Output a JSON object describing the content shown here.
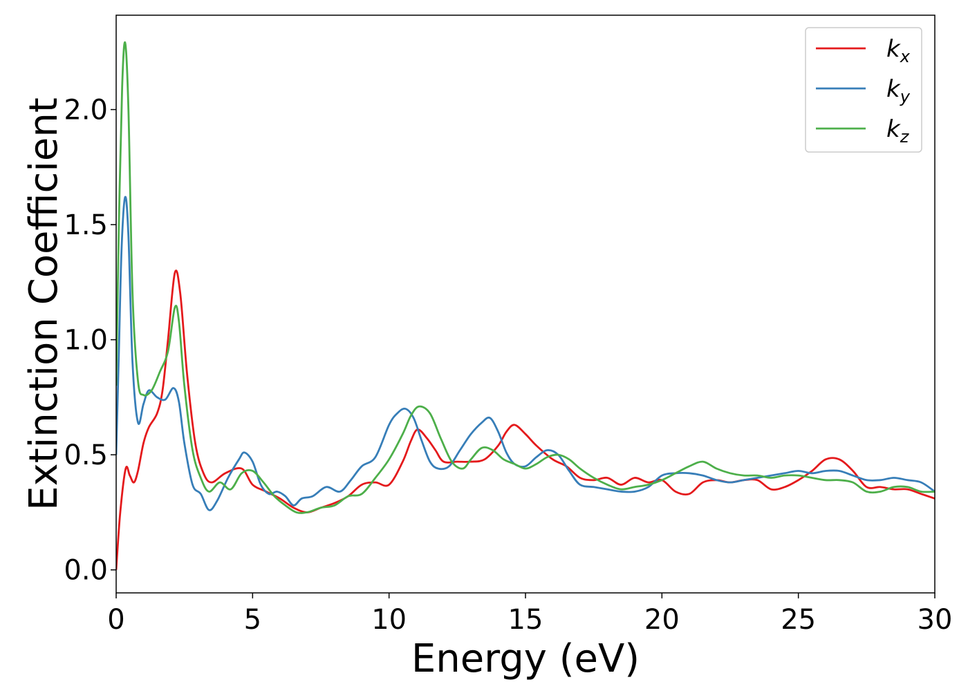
{
  "chart_data": {
    "type": "line",
    "title": "",
    "xlabel": "Energy (eV)",
    "ylabel": "Extinction Coefficient",
    "xlim": [
      0,
      30
    ],
    "ylim": [
      -0.1,
      2.41
    ],
    "xticks": [
      0,
      5,
      10,
      15,
      20,
      25,
      30
    ],
    "xtick_labels": [
      "0",
      "5",
      "10",
      "15",
      "20",
      "25",
      "30"
    ],
    "yticks": [
      0.0,
      0.5,
      1.0,
      1.5,
      2.0
    ],
    "ytick_labels": [
      "0.0",
      "0.5",
      "1.0",
      "1.5",
      "2.0"
    ],
    "grid": false,
    "legend_position": "top-right",
    "series": [
      {
        "name": "k",
        "subscript": "x",
        "color": "#e41a1c",
        "points": [
          [
            0,
            0.0
          ],
          [
            0.15,
            0.25
          ],
          [
            0.35,
            0.44
          ],
          [
            0.5,
            0.41
          ],
          [
            0.65,
            0.38
          ],
          [
            0.8,
            0.43
          ],
          [
            1.0,
            0.55
          ],
          [
            1.2,
            0.62
          ],
          [
            1.5,
            0.68
          ],
          [
            1.7,
            0.78
          ],
          [
            1.9,
            1.0
          ],
          [
            2.15,
            1.29
          ],
          [
            2.35,
            1.2
          ],
          [
            2.6,
            0.85
          ],
          [
            2.9,
            0.55
          ],
          [
            3.2,
            0.42
          ],
          [
            3.5,
            0.38
          ],
          [
            4.0,
            0.42
          ],
          [
            4.6,
            0.44
          ],
          [
            5.0,
            0.37
          ],
          [
            5.5,
            0.34
          ],
          [
            6.0,
            0.31
          ],
          [
            6.5,
            0.27
          ],
          [
            7.0,
            0.25
          ],
          [
            7.5,
            0.27
          ],
          [
            8.0,
            0.29
          ],
          [
            8.5,
            0.32
          ],
          [
            9.0,
            0.37
          ],
          [
            9.5,
            0.38
          ],
          [
            10.0,
            0.37
          ],
          [
            10.5,
            0.47
          ],
          [
            10.8,
            0.56
          ],
          [
            11.05,
            0.61
          ],
          [
            11.4,
            0.57
          ],
          [
            11.7,
            0.52
          ],
          [
            12.0,
            0.47
          ],
          [
            12.5,
            0.47
          ],
          [
            13.0,
            0.47
          ],
          [
            13.5,
            0.48
          ],
          [
            14.0,
            0.54
          ],
          [
            14.3,
            0.6
          ],
          [
            14.6,
            0.63
          ],
          [
            15.0,
            0.59
          ],
          [
            15.4,
            0.54
          ],
          [
            16.0,
            0.48
          ],
          [
            16.5,
            0.45
          ],
          [
            17.0,
            0.4
          ],
          [
            17.5,
            0.39
          ],
          [
            18.0,
            0.4
          ],
          [
            18.5,
            0.37
          ],
          [
            19.0,
            0.4
          ],
          [
            19.5,
            0.38
          ],
          [
            20.0,
            0.39
          ],
          [
            20.5,
            0.34
          ],
          [
            21.0,
            0.33
          ],
          [
            21.5,
            0.38
          ],
          [
            22.0,
            0.39
          ],
          [
            22.5,
            0.38
          ],
          [
            23.0,
            0.39
          ],
          [
            23.5,
            0.39
          ],
          [
            24.0,
            0.35
          ],
          [
            24.5,
            0.36
          ],
          [
            25.0,
            0.39
          ],
          [
            25.5,
            0.43
          ],
          [
            26.0,
            0.48
          ],
          [
            26.5,
            0.48
          ],
          [
            27.0,
            0.43
          ],
          [
            27.5,
            0.36
          ],
          [
            28.0,
            0.36
          ],
          [
            28.5,
            0.35
          ],
          [
            29.0,
            0.35
          ],
          [
            29.5,
            0.33
          ],
          [
            30.0,
            0.31
          ]
        ]
      },
      {
        "name": "k",
        "subscript": "y",
        "color": "#377eb8",
        "points": [
          [
            0,
            0.5
          ],
          [
            0.1,
            0.95
          ],
          [
            0.2,
            1.4
          ],
          [
            0.33,
            1.62
          ],
          [
            0.45,
            1.45
          ],
          [
            0.6,
            0.9
          ],
          [
            0.8,
            0.64
          ],
          [
            1.0,
            0.72
          ],
          [
            1.2,
            0.78
          ],
          [
            1.5,
            0.75
          ],
          [
            1.8,
            0.74
          ],
          [
            2.1,
            0.79
          ],
          [
            2.3,
            0.73
          ],
          [
            2.5,
            0.55
          ],
          [
            2.8,
            0.37
          ],
          [
            3.1,
            0.33
          ],
          [
            3.4,
            0.26
          ],
          [
            3.7,
            0.3
          ],
          [
            4.1,
            0.4
          ],
          [
            4.5,
            0.48
          ],
          [
            4.7,
            0.51
          ],
          [
            5.0,
            0.47
          ],
          [
            5.3,
            0.37
          ],
          [
            5.6,
            0.33
          ],
          [
            5.9,
            0.34
          ],
          [
            6.2,
            0.32
          ],
          [
            6.5,
            0.28
          ],
          [
            6.8,
            0.31
          ],
          [
            7.2,
            0.32
          ],
          [
            7.7,
            0.36
          ],
          [
            8.2,
            0.34
          ],
          [
            8.6,
            0.39
          ],
          [
            9.0,
            0.45
          ],
          [
            9.5,
            0.49
          ],
          [
            10.0,
            0.63
          ],
          [
            10.3,
            0.68
          ],
          [
            10.6,
            0.7
          ],
          [
            10.9,
            0.66
          ],
          [
            11.2,
            0.56
          ],
          [
            11.5,
            0.47
          ],
          [
            11.8,
            0.44
          ],
          [
            12.2,
            0.45
          ],
          [
            12.6,
            0.52
          ],
          [
            13.0,
            0.59
          ],
          [
            13.4,
            0.64
          ],
          [
            13.7,
            0.66
          ],
          [
            14.0,
            0.6
          ],
          [
            14.3,
            0.51
          ],
          [
            14.6,
            0.46
          ],
          [
            15.0,
            0.45
          ],
          [
            15.4,
            0.49
          ],
          [
            15.8,
            0.52
          ],
          [
            16.2,
            0.5
          ],
          [
            16.6,
            0.43
          ],
          [
            17.0,
            0.37
          ],
          [
            17.5,
            0.36
          ],
          [
            18.0,
            0.35
          ],
          [
            18.5,
            0.34
          ],
          [
            19.0,
            0.34
          ],
          [
            19.5,
            0.36
          ],
          [
            20.0,
            0.41
          ],
          [
            20.5,
            0.42
          ],
          [
            21.0,
            0.42
          ],
          [
            21.5,
            0.41
          ],
          [
            22.0,
            0.39
          ],
          [
            22.5,
            0.38
          ],
          [
            23.0,
            0.39
          ],
          [
            23.5,
            0.4
          ],
          [
            24.0,
            0.41
          ],
          [
            24.5,
            0.42
          ],
          [
            25.0,
            0.43
          ],
          [
            25.5,
            0.42
          ],
          [
            26.0,
            0.43
          ],
          [
            26.5,
            0.43
          ],
          [
            27.0,
            0.41
          ],
          [
            27.5,
            0.39
          ],
          [
            28.0,
            0.39
          ],
          [
            28.5,
            0.4
          ],
          [
            29.0,
            0.39
          ],
          [
            29.5,
            0.38
          ],
          [
            30.0,
            0.34
          ]
        ]
      },
      {
        "name": "k",
        "subscript": "z",
        "color": "#4daf4a",
        "points": [
          [
            0,
            0.8
          ],
          [
            0.1,
            1.5
          ],
          [
            0.22,
            2.1
          ],
          [
            0.33,
            2.29
          ],
          [
            0.45,
            2.0
          ],
          [
            0.6,
            1.2
          ],
          [
            0.8,
            0.82
          ],
          [
            1.0,
            0.76
          ],
          [
            1.3,
            0.78
          ],
          [
            1.6,
            0.86
          ],
          [
            1.9,
            0.95
          ],
          [
            2.15,
            1.14
          ],
          [
            2.3,
            1.08
          ],
          [
            2.5,
            0.8
          ],
          [
            2.8,
            0.52
          ],
          [
            3.1,
            0.4
          ],
          [
            3.4,
            0.34
          ],
          [
            3.8,
            0.38
          ],
          [
            4.2,
            0.35
          ],
          [
            4.6,
            0.42
          ],
          [
            5.0,
            0.43
          ],
          [
            5.4,
            0.38
          ],
          [
            5.8,
            0.32
          ],
          [
            6.2,
            0.28
          ],
          [
            6.6,
            0.25
          ],
          [
            7.0,
            0.25
          ],
          [
            7.5,
            0.27
          ],
          [
            8.0,
            0.28
          ],
          [
            8.5,
            0.32
          ],
          [
            9.0,
            0.33
          ],
          [
            9.5,
            0.4
          ],
          [
            10.0,
            0.48
          ],
          [
            10.5,
            0.59
          ],
          [
            10.8,
            0.67
          ],
          [
            11.1,
            0.71
          ],
          [
            11.5,
            0.68
          ],
          [
            11.9,
            0.57
          ],
          [
            12.3,
            0.47
          ],
          [
            12.7,
            0.44
          ],
          [
            13.0,
            0.48
          ],
          [
            13.4,
            0.53
          ],
          [
            13.8,
            0.52
          ],
          [
            14.2,
            0.48
          ],
          [
            14.6,
            0.46
          ],
          [
            15.0,
            0.44
          ],
          [
            15.4,
            0.46
          ],
          [
            15.8,
            0.49
          ],
          [
            16.2,
            0.5
          ],
          [
            16.6,
            0.48
          ],
          [
            17.0,
            0.44
          ],
          [
            17.5,
            0.4
          ],
          [
            18.0,
            0.37
          ],
          [
            18.5,
            0.35
          ],
          [
            19.0,
            0.36
          ],
          [
            19.5,
            0.37
          ],
          [
            20.0,
            0.39
          ],
          [
            20.5,
            0.42
          ],
          [
            21.0,
            0.45
          ],
          [
            21.5,
            0.47
          ],
          [
            22.0,
            0.44
          ],
          [
            22.5,
            0.42
          ],
          [
            23.0,
            0.41
          ],
          [
            23.5,
            0.41
          ],
          [
            24.0,
            0.4
          ],
          [
            24.5,
            0.41
          ],
          [
            25.0,
            0.41
          ],
          [
            25.5,
            0.4
          ],
          [
            26.0,
            0.39
          ],
          [
            26.5,
            0.39
          ],
          [
            27.0,
            0.38
          ],
          [
            27.5,
            0.34
          ],
          [
            28.0,
            0.34
          ],
          [
            28.5,
            0.36
          ],
          [
            29.0,
            0.36
          ],
          [
            29.5,
            0.34
          ],
          [
            30.0,
            0.34
          ]
        ]
      }
    ]
  }
}
